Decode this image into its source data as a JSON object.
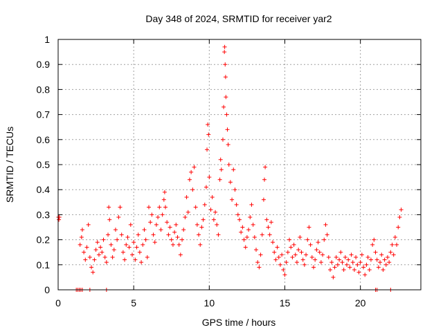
{
  "chart_data": {
    "type": "scatter",
    "title": "Day 348 of 2024, SRMTID for receiver yar2",
    "xlabel": "GPS time / hours",
    "ylabel": "SRMTID / TECUs",
    "xlim": [
      0,
      24
    ],
    "ylim": [
      0,
      1
    ],
    "xticks": [
      0,
      5,
      10,
      15,
      20
    ],
    "yticks": [
      0,
      0.1,
      0.2,
      0.3,
      0.4,
      0.5,
      0.6,
      0.7,
      0.8,
      0.9,
      1
    ],
    "xtick_labels": [
      "0",
      "5",
      "10",
      "15",
      "20"
    ],
    "ytick_labels": [
      "0",
      "0.1",
      "0.2",
      "0.3",
      "0.4",
      "0.5",
      "0.6",
      "0.7",
      "0.8",
      "0.9",
      "1"
    ],
    "grid": true,
    "marker": "+",
    "color": "#ff0000",
    "series": [
      {
        "name": "SRMTID",
        "points": [
          [
            0.02,
            0.29
          ],
          [
            0.05,
            0.28
          ],
          [
            0.08,
            0.29
          ],
          [
            1.2,
            0
          ],
          [
            1.3,
            0
          ],
          [
            1.4,
            0
          ],
          [
            1.5,
            0
          ],
          [
            1.6,
            0
          ],
          [
            2.1,
            0
          ],
          [
            3.2,
            0
          ],
          [
            21.0,
            0
          ],
          [
            21.1,
            0
          ],
          [
            22.0,
            0
          ],
          [
            1.45,
            0.18
          ],
          [
            1.55,
            0.21
          ],
          [
            1.6,
            0.24
          ],
          [
            1.7,
            0.15
          ],
          [
            1.8,
            0.12
          ],
          [
            1.9,
            0.17
          ],
          [
            2.0,
            0.26
          ],
          [
            2.1,
            0.13
          ],
          [
            2.2,
            0.09
          ],
          [
            2.3,
            0.07
          ],
          [
            2.4,
            0.12
          ],
          [
            2.5,
            0.16
          ],
          [
            2.6,
            0.19
          ],
          [
            2.7,
            0.14
          ],
          [
            2.8,
            0.17
          ],
          [
            2.9,
            0.15
          ],
          [
            3.0,
            0.2
          ],
          [
            3.1,
            0.13
          ],
          [
            3.2,
            0.11
          ],
          [
            3.3,
            0.22
          ],
          [
            3.35,
            0.33
          ],
          [
            3.4,
            0.28
          ],
          [
            3.5,
            0.18
          ],
          [
            3.6,
            0.13
          ],
          [
            3.7,
            0.16
          ],
          [
            3.8,
            0.24
          ],
          [
            3.9,
            0.2
          ],
          [
            4.0,
            0.29
          ],
          [
            4.1,
            0.33
          ],
          [
            4.2,
            0.22
          ],
          [
            4.3,
            0.15
          ],
          [
            4.4,
            0.12
          ],
          [
            4.5,
            0.18
          ],
          [
            4.6,
            0.21
          ],
          [
            4.7,
            0.17
          ],
          [
            4.8,
            0.26
          ],
          [
            4.9,
            0.14
          ],
          [
            5.0,
            0.19
          ],
          [
            5.1,
            0.12
          ],
          [
            5.2,
            0.17
          ],
          [
            5.3,
            0.22
          ],
          [
            5.4,
            0.15
          ],
          [
            5.5,
            0.11
          ],
          [
            5.6,
            0.18
          ],
          [
            5.7,
            0.24
          ],
          [
            5.8,
            0.2
          ],
          [
            5.9,
            0.13
          ],
          [
            6.0,
            0.33
          ],
          [
            6.1,
            0.27
          ],
          [
            6.2,
            0.3
          ],
          [
            6.3,
            0.22
          ],
          [
            6.4,
            0.19
          ],
          [
            6.5,
            0.26
          ],
          [
            6.6,
            0.29
          ],
          [
            6.7,
            0.33
          ],
          [
            6.8,
            0.24
          ],
          [
            6.9,
            0.3
          ],
          [
            7.0,
            0.36
          ],
          [
            7.05,
            0.39
          ],
          [
            7.1,
            0.33
          ],
          [
            7.2,
            0.27
          ],
          [
            7.3,
            0.22
          ],
          [
            7.4,
            0.25
          ],
          [
            7.5,
            0.2
          ],
          [
            7.6,
            0.18
          ],
          [
            7.7,
            0.23
          ],
          [
            7.8,
            0.26
          ],
          [
            7.9,
            0.21
          ],
          [
            8.0,
            0.18
          ],
          [
            8.1,
            0.14
          ],
          [
            8.2,
            0.2
          ],
          [
            8.3,
            0.24
          ],
          [
            8.4,
            0.29
          ],
          [
            8.5,
            0.37
          ],
          [
            8.6,
            0.31
          ],
          [
            8.7,
            0.44
          ],
          [
            8.8,
            0.47
          ],
          [
            8.9,
            0.4
          ],
          [
            9.0,
            0.49
          ],
          [
            9.1,
            0.33
          ],
          [
            9.2,
            0.26
          ],
          [
            9.3,
            0.22
          ],
          [
            9.4,
            0.18
          ],
          [
            9.5,
            0.25
          ],
          [
            9.6,
            0.28
          ],
          [
            9.7,
            0.34
          ],
          [
            9.8,
            0.41
          ],
          [
            9.85,
            0.56
          ],
          [
            9.9,
            0.66
          ],
          [
            9.95,
            0.62
          ],
          [
            10.0,
            0.45
          ],
          [
            10.1,
            0.32
          ],
          [
            10.2,
            0.37
          ],
          [
            10.3,
            0.28
          ],
          [
            10.4,
            0.31
          ],
          [
            10.5,
            0.26
          ],
          [
            10.6,
            0.22
          ],
          [
            10.7,
            0.44
          ],
          [
            10.75,
            0.52
          ],
          [
            10.8,
            0.48
          ],
          [
            10.9,
            0.6
          ],
          [
            10.95,
            0.73
          ],
          [
            11.0,
            0.95
          ],
          [
            11.02,
            0.97
          ],
          [
            11.05,
            0.9
          ],
          [
            11.08,
            0.85
          ],
          [
            11.1,
            0.77
          ],
          [
            11.15,
            0.7
          ],
          [
            11.2,
            0.64
          ],
          [
            11.25,
            0.58
          ],
          [
            11.3,
            0.5
          ],
          [
            11.4,
            0.43
          ],
          [
            11.5,
            0.36
          ],
          [
            11.6,
            0.48
          ],
          [
            11.7,
            0.4
          ],
          [
            11.8,
            0.34
          ],
          [
            11.9,
            0.3
          ],
          [
            12.0,
            0.28
          ],
          [
            12.1,
            0.23
          ],
          [
            12.2,
            0.25
          ],
          [
            12.3,
            0.2
          ],
          [
            12.4,
            0.17
          ],
          [
            12.5,
            0.21
          ],
          [
            12.6,
            0.24
          ],
          [
            12.7,
            0.29
          ],
          [
            12.8,
            0.34
          ],
          [
            12.9,
            0.26
          ],
          [
            13.0,
            0.21
          ],
          [
            13.1,
            0.16
          ],
          [
            13.2,
            0.11
          ],
          [
            13.3,
            0.09
          ],
          [
            13.4,
            0.14
          ],
          [
            13.5,
            0.22
          ],
          [
            13.6,
            0.36
          ],
          [
            13.65,
            0.44
          ],
          [
            13.7,
            0.49
          ],
          [
            13.8,
            0.28
          ],
          [
            13.9,
            0.25
          ],
          [
            14.0,
            0.22
          ],
          [
            14.1,
            0.27
          ],
          [
            14.2,
            0.19
          ],
          [
            14.3,
            0.15
          ],
          [
            14.4,
            0.12
          ],
          [
            14.5,
            0.17
          ],
          [
            14.6,
            0.13
          ],
          [
            14.7,
            0.1
          ],
          [
            14.8,
            0.14
          ],
          [
            14.9,
            0.08
          ],
          [
            15.0,
            0.06
          ],
          [
            15.1,
            0.11
          ],
          [
            15.2,
            0.15
          ],
          [
            15.3,
            0.2
          ],
          [
            15.4,
            0.17
          ],
          [
            15.5,
            0.13
          ],
          [
            15.6,
            0.18
          ],
          [
            15.7,
            0.14
          ],
          [
            15.8,
            0.11
          ],
          [
            15.9,
            0.16
          ],
          [
            16.0,
            0.21
          ],
          [
            16.1,
            0.15
          ],
          [
            16.2,
            0.12
          ],
          [
            16.3,
            0.1
          ],
          [
            16.4,
            0.14
          ],
          [
            16.5,
            0.2
          ],
          [
            16.6,
            0.25
          ],
          [
            16.7,
            0.18
          ],
          [
            16.8,
            0.13
          ],
          [
            16.9,
            0.09
          ],
          [
            17.0,
            0.12
          ],
          [
            17.1,
            0.16
          ],
          [
            17.2,
            0.19
          ],
          [
            17.3,
            0.15
          ],
          [
            17.4,
            0.11
          ],
          [
            17.5,
            0.14
          ],
          [
            17.6,
            0.2
          ],
          [
            17.7,
            0.26
          ],
          [
            17.8,
            0.22
          ],
          [
            17.9,
            0.13
          ],
          [
            18.0,
            0.08
          ],
          [
            18.1,
            0.11
          ],
          [
            18.2,
            0.05
          ],
          [
            18.3,
            0.09
          ],
          [
            18.4,
            0.13
          ],
          [
            18.5,
            0.1
          ],
          [
            18.6,
            0.12
          ],
          [
            18.7,
            0.15
          ],
          [
            18.8,
            0.11
          ],
          [
            18.9,
            0.08
          ],
          [
            19.0,
            0.13
          ],
          [
            19.1,
            0.1
          ],
          [
            19.2,
            0.12
          ],
          [
            19.3,
            0.09
          ],
          [
            19.4,
            0.14
          ],
          [
            19.5,
            0.11
          ],
          [
            19.6,
            0.08
          ],
          [
            19.7,
            0.13
          ],
          [
            19.8,
            0.1
          ],
          [
            19.9,
            0.07
          ],
          [
            20.0,
            0.11
          ],
          [
            20.1,
            0.14
          ],
          [
            20.2,
            0.09
          ],
          [
            20.3,
            0.06
          ],
          [
            20.4,
            0.1
          ],
          [
            20.5,
            0.13
          ],
          [
            20.6,
            0.08
          ],
          [
            20.7,
            0.12
          ],
          [
            20.8,
            0.18
          ],
          [
            20.9,
            0.2
          ],
          [
            21.0,
            0.15
          ],
          [
            21.1,
            0.12
          ],
          [
            21.2,
            0.09
          ],
          [
            21.3,
            0.11
          ],
          [
            21.4,
            0.14
          ],
          [
            21.5,
            0.08
          ],
          [
            21.6,
            0.12
          ],
          [
            21.7,
            0.1
          ],
          [
            21.8,
            0.13
          ],
          [
            21.9,
            0.11
          ],
          [
            22.0,
            0.15
          ],
          [
            22.1,
            0.18
          ],
          [
            22.2,
            0.14
          ],
          [
            22.3,
            0.21
          ],
          [
            22.4,
            0.18
          ],
          [
            22.5,
            0.25
          ],
          [
            22.6,
            0.29
          ],
          [
            22.7,
            0.32
          ]
        ]
      }
    ]
  }
}
